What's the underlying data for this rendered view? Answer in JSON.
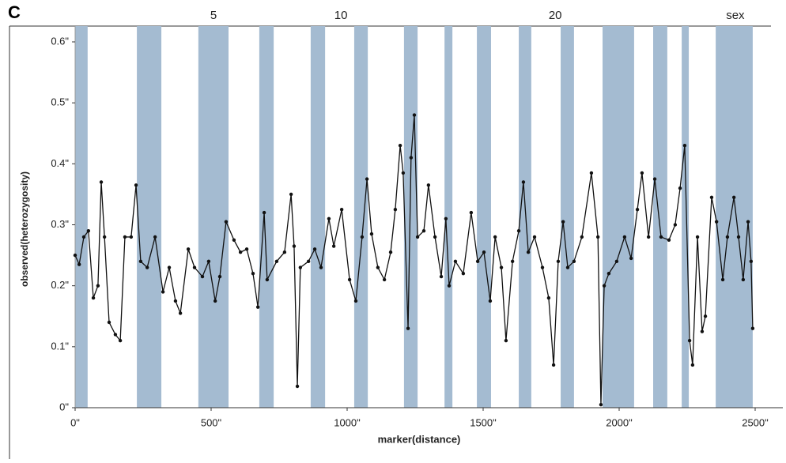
{
  "chart_data": {
    "type": "line",
    "panel_label": "C",
    "xlabel": "marker(distance)",
    "ylabel": "observed(heterozygosity)",
    "xlim": [
      0,
      2500
    ],
    "ylim": [
      0,
      0.6
    ],
    "xticks": [
      {
        "value": 0,
        "label": "0\""
      },
      {
        "value": 500,
        "label": "500\""
      },
      {
        "value": 1000,
        "label": "1000\""
      },
      {
        "value": 1500,
        "label": "1500\""
      },
      {
        "value": 2000,
        "label": "2000\""
      },
      {
        "value": 2500,
        "label": "2500\""
      }
    ],
    "yticks": [
      {
        "value": 0,
        "label": "0\""
      },
      {
        "value": 0.1,
        "label": "0.1\""
      },
      {
        "value": 0.2,
        "label": "0.2\""
      },
      {
        "value": 0.3,
        "label": "0.3\""
      },
      {
        "value": 0.4,
        "label": "0.4\""
      },
      {
        "value": 0.5,
        "label": "0.5\""
      },
      {
        "value": 0.6,
        "label": "0.6\""
      }
    ],
    "color": "#111111",
    "band_color": "#a4bbd1",
    "bands": [
      [
        0,
        46
      ],
      [
        227,
        317
      ],
      [
        453,
        564
      ],
      [
        677,
        730
      ],
      [
        866,
        919
      ],
      [
        1026,
        1076
      ],
      [
        1209,
        1259
      ],
      [
        1358,
        1387
      ],
      [
        1477,
        1529
      ],
      [
        1631,
        1677
      ],
      [
        1785,
        1834
      ],
      [
        1939,
        2055
      ],
      [
        2125,
        2177
      ],
      [
        2230,
        2256
      ],
      [
        2355,
        2491
      ]
    ],
    "annotations": [
      {
        "text": "5",
        "x": 509
      },
      {
        "text": "10",
        "x": 977
      },
      {
        "text": "20",
        "x": 1765
      },
      {
        "text": "sex",
        "x": 2427
      }
    ],
    "x": [
      0,
      15,
      32,
      49,
      67,
      84,
      96,
      108,
      125,
      148,
      166,
      183,
      206,
      224,
      241,
      265,
      294,
      323,
      346,
      369,
      387,
      416,
      439,
      468,
      491,
      515,
      532,
      555,
      584,
      608,
      631,
      654,
      672,
      695,
      706,
      741,
      770,
      794,
      805,
      817,
      828,
      858,
      881,
      904,
      933,
      951,
      980,
      1009,
      1032,
      1055,
      1073,
      1090,
      1113,
      1137,
      1160,
      1177,
      1195,
      1206,
      1224,
      1235,
      1247,
      1259,
      1282,
      1299,
      1323,
      1346,
      1363,
      1375,
      1398,
      1427,
      1456,
      1480,
      1503,
      1526,
      1544,
      1567,
      1584,
      1608,
      1631,
      1648,
      1666,
      1689,
      1718,
      1741,
      1759,
      1776,
      1794,
      1811,
      1834,
      1863,
      1898,
      1922,
      1933,
      1945,
      1962,
      1991,
      2020,
      2044,
      2067,
      2084,
      2108,
      2131,
      2154,
      2183,
      2206,
      2224,
      2241,
      2259,
      2270,
      2288,
      2305,
      2317,
      2340,
      2358,
      2381,
      2398,
      2422,
      2439,
      2456,
      2474,
      2485,
      2491
    ],
    "values": [
      0.25,
      0.235,
      0.28,
      0.29,
      0.18,
      0.2,
      0.37,
      0.28,
      0.14,
      0.12,
      0.11,
      0.28,
      0.28,
      0.365,
      0.24,
      0.23,
      0.28,
      0.19,
      0.23,
      0.175,
      0.155,
      0.26,
      0.23,
      0.215,
      0.24,
      0.175,
      0.215,
      0.305,
      0.275,
      0.255,
      0.26,
      0.22,
      0.165,
      0.32,
      0.21,
      0.24,
      0.255,
      0.35,
      0.265,
      0.035,
      0.23,
      0.24,
      0.26,
      0.23,
      0.31,
      0.265,
      0.325,
      0.21,
      0.175,
      0.28,
      0.375,
      0.285,
      0.23,
      0.21,
      0.255,
      0.325,
      0.43,
      0.385,
      0.13,
      0.41,
      0.48,
      0.28,
      0.29,
      0.365,
      0.28,
      0.215,
      0.31,
      0.2,
      0.24,
      0.22,
      0.32,
      0.24,
      0.255,
      0.175,
      0.28,
      0.23,
      0.11,
      0.24,
      0.29,
      0.37,
      0.255,
      0.28,
      0.23,
      0.18,
      0.07,
      0.24,
      0.305,
      0.23,
      0.24,
      0.28,
      0.385,
      0.28,
      0.005,
      0.2,
      0.22,
      0.24,
      0.28,
      0.245,
      0.325,
      0.385,
      0.28,
      0.375,
      0.28,
      0.275,
      0.3,
      0.36,
      0.43,
      0.11,
      0.07,
      0.28,
      0.125,
      0.15,
      0.345,
      0.305,
      0.21,
      0.28,
      0.345,
      0.28,
      0.21,
      0.305,
      0.24,
      0.13
    ]
  }
}
